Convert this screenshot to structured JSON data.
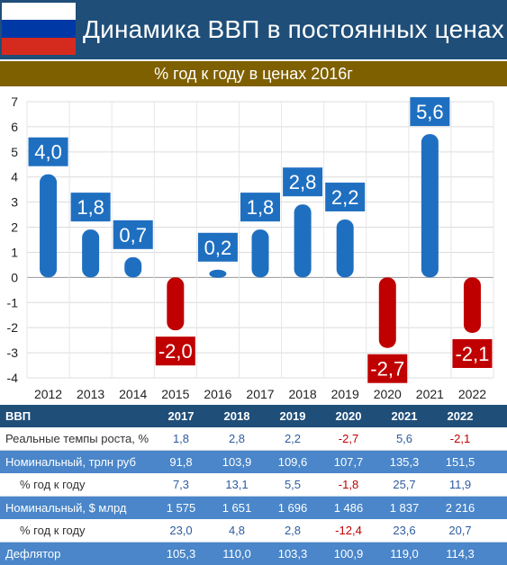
{
  "header": {
    "title": "Динамика ВВП в постоянных ценах",
    "subtitle": "% год к году в ценах 2016г",
    "flag_colors": [
      "#ffffff",
      "#0039a6",
      "#d52b1e"
    ]
  },
  "colors": {
    "positive": "#1f6fc1",
    "negative": "#c00000",
    "header_bg": "#1f4e79",
    "subtitle_bg": "#7f6000",
    "row_blue": "#4a86c9"
  },
  "chart_data": {
    "type": "bar",
    "categories": [
      "2012",
      "2013",
      "2014",
      "2015",
      "2016",
      "2017",
      "2018",
      "2019",
      "2020",
      "2021",
      "2022"
    ],
    "values": [
      4.0,
      1.8,
      0.7,
      -2.0,
      0.2,
      1.8,
      2.8,
      2.2,
      -2.7,
      5.6,
      -2.1
    ],
    "data_labels": [
      "4,0",
      "1,8",
      "0,7",
      "-2,0",
      "0,2",
      "1,8",
      "2,8",
      "2,2",
      "-2,7",
      "5,6",
      "-2,1"
    ],
    "y_ticks": [
      "-4",
      "-3",
      "-2",
      "-1",
      "0",
      "1",
      "2",
      "3",
      "4",
      "5",
      "6",
      "7"
    ],
    "ylim": [
      -4,
      7
    ],
    "grid": true,
    "title": "% год к году в ценах 2016г"
  },
  "table": {
    "header": [
      "ВВП",
      "2017",
      "2018",
      "2019",
      "2020",
      "2021",
      "2022"
    ],
    "rows": [
      {
        "label": "Реальные темпы роста, %",
        "values": [
          "1,8",
          "2,8",
          "2,2",
          "-2,7",
          "5,6",
          "-2,1"
        ]
      },
      {
        "label": "Номинальный, трлн руб",
        "values": [
          "91,8",
          "103,9",
          "109,6",
          "107,7",
          "135,3",
          "151,5"
        ]
      },
      {
        "label": "% год к году",
        "values": [
          "7,3",
          "13,1",
          "5,5",
          "-1,8",
          "25,7",
          "11,9"
        ]
      },
      {
        "label": "Номинальный, $ млрд",
        "values": [
          "1 575",
          "1 651",
          "1 696",
          "1 486",
          "1 837",
          "2 216"
        ]
      },
      {
        "label": "% год к году",
        "values": [
          "23,0",
          "4,8",
          "2,8",
          "-12,4",
          "23,6",
          "20,7"
        ]
      },
      {
        "label": "Дефлятор",
        "values": [
          "105,3",
          "110,0",
          "103,3",
          "100,9",
          "119,0",
          "114,3"
        ]
      }
    ]
  }
}
